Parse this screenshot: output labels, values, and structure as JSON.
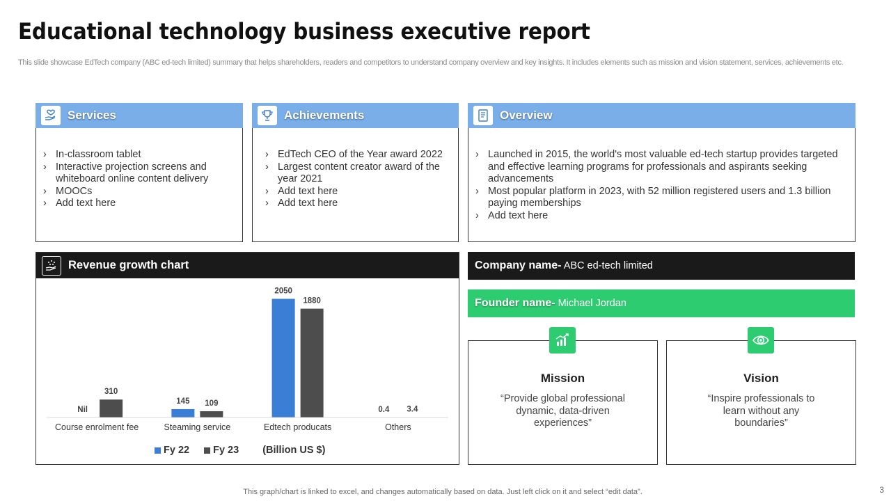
{
  "header": {
    "title": "Educational technology business executive report",
    "subtitle": "This slide showcase EdTech company (ABC ed-tech limited) summary that helps shareholders, readers and competitors to understand company overview and key insights. It includes elements such as mission and vision statement, services, achievements etc."
  },
  "services": {
    "title": "Services",
    "icon": "hand-heart-icon",
    "items": [
      "In-classroom tablet",
      "Interactive projection screens and whiteboard online content delivery",
      " MOOCs",
      "Add text here"
    ]
  },
  "achievements": {
    "title": "Achievements",
    "icon": "trophy-icon",
    "items": [
      "EdTech CEO of the Year award 2022",
      "Largest content creator award of the year 2021",
      "Add text here",
      "Add text here"
    ]
  },
  "overview": {
    "title": "Overview",
    "icon": "document-icon",
    "items": [
      "Launched in 2015, the world's most valuable ed-tech startup provides targeted and effective learning programs for professionals and aspirants seeking advancements",
      "Most popular platform in 2023, with 52 million registered users and 1.3 billion paying memberships",
      "Add text here"
    ]
  },
  "revenue": {
    "title": "Revenue growth chart",
    "icon": "growth-hand-icon",
    "unit_label": "(Billion US $)"
  },
  "chart_data": {
    "type": "bar",
    "categories": [
      "Course enrolment fee",
      "Steaming service",
      "Edtech producats",
      "Others"
    ],
    "series": [
      {
        "name": "Fy 22",
        "color": "#3a7fd5",
        "values": [
          0,
          145,
          2050,
          0.4
        ],
        "labels": [
          "Nil",
          "145",
          "2050",
          "0.4"
        ]
      },
      {
        "name": "Fy 23",
        "color": "#4d4d4d",
        "values": [
          310,
          109,
          1880,
          3.4
        ],
        "labels": [
          "310",
          "109",
          "1880",
          "3.4"
        ]
      }
    ],
    "ylim": [
      0,
      2200
    ],
    "grid": false,
    "legend": "bottom",
    "xlabel": "",
    "ylabel": ""
  },
  "company": {
    "label": "Company name-",
    "value": " ABC ed-tech limited"
  },
  "founder": {
    "label": "Founder name-",
    "value": " Michael Jordan"
  },
  "mission": {
    "title": "Mission",
    "icon": "growth-chart-icon",
    "text": "“Provide global professional  dynamic, data-driven experiences”"
  },
  "vision": {
    "title": "Vision",
    "icon": "eye-icon",
    "text": "“Inspire professionals to learn without any boundaries”"
  },
  "footer": {
    "note": "This graph/chart is linked to excel,  and changes automatically based on data. Just left click on it and select “edit data”.",
    "page": "3"
  },
  "colors": {
    "card_header": "#7aaee8",
    "dark_bar": "#1a1a1a",
    "green": "#2ecc71",
    "fy22": "#3a7fd5",
    "fy23": "#4d4d4d"
  }
}
